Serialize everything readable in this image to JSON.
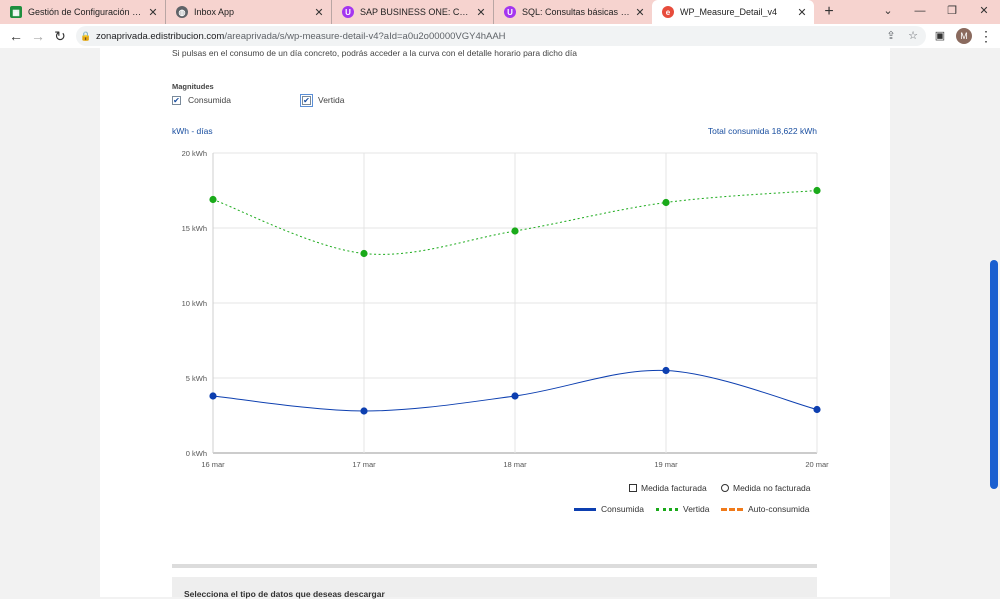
{
  "browser": {
    "tabs": [
      {
        "title": "Gestión de Configuración apps.",
        "icon": "google-sheets-icon",
        "color": "#1e8e3e"
      },
      {
        "title": "Inbox App",
        "icon": "globe-icon",
        "color": "#5f6368"
      },
      {
        "title": "SAP BUSINESS ONE: Cero a Exp",
        "icon": "udemy-icon",
        "color": "#a435f0"
      },
      {
        "title": "SQL: Consultas básicas a compl",
        "icon": "udemy-icon",
        "color": "#a435f0"
      },
      {
        "title": "WP_Measure_Detail_v4",
        "icon": "edistribucion-icon",
        "color": "#e74c3c"
      }
    ],
    "new_tab": "+",
    "url_host": "zonaprivada.edistribucion.com",
    "url_path": "/areaprivada/s/wp-measure-detail-v4?aId=a0u2o00000VGY4hAAH",
    "profile_initial": "M"
  },
  "page": {
    "intro_text": "Si pulsas en el consumo de un día concreto, podrás acceder a la curva con el detalle horario para dicho día",
    "magnitudes_title": "Magnitudes",
    "checkbox_consumida": "Consumida",
    "checkbox_vertida": "Vertida",
    "unit_label": "kWh - días",
    "total_label": "Total consumida 18,622 kWh",
    "legend_facturada": "Medida facturada",
    "legend_no_facturada": "Medida no facturada",
    "legend_consumida": "Consumida",
    "legend_vertida": "Vertida",
    "legend_autoconsumida": "Auto-consumida",
    "download_title": "Selecciona el tipo de datos que deseas descargar"
  },
  "colors": {
    "consumida": "#0d3fb0",
    "vertida": "#1aaa1a",
    "autoconsumida": "#f07a1a",
    "accent": "#1a4fa0"
  },
  "chart_data": {
    "type": "line",
    "categories": [
      "16 mar",
      "17 mar",
      "18 mar",
      "19 mar",
      "20 mar"
    ],
    "y_ticks": [
      "0 kWh",
      "5 kWh",
      "10 kWh",
      "15 kWh",
      "20 kWh"
    ],
    "ylim": [
      0,
      20
    ],
    "grid": true,
    "legend_position": "bottom-right",
    "series": [
      {
        "name": "Consumida",
        "values": [
          3.8,
          2.8,
          3.8,
          5.5,
          2.9
        ],
        "style": "solid"
      },
      {
        "name": "Vertida",
        "values": [
          16.9,
          13.3,
          14.8,
          16.7,
          17.5
        ],
        "style": "dotted"
      }
    ]
  }
}
